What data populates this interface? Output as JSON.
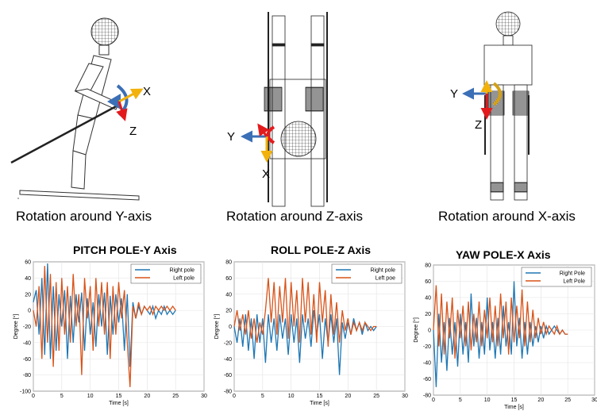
{
  "figures": [
    {
      "caption": "Rotation around Y-axis",
      "axes": [
        "X",
        "Z"
      ]
    },
    {
      "caption": "Rotation around Z-axis",
      "axes": [
        "Y",
        "X"
      ]
    },
    {
      "caption": "Rotation around X-axis",
      "axes": [
        "Y",
        "Z"
      ]
    }
  ],
  "colors": {
    "right_pole": "#1f77b4",
    "left_pole": "#d95319",
    "axis_x": "#f2b20b",
    "axis_y": "#3b6fb6",
    "axis_z": "#e31a1c"
  },
  "chart_data": [
    {
      "type": "line",
      "title": "PITCH POLE-Y Axis",
      "xlabel": "Time [s]",
      "ylabel": "Degree [°]",
      "xlim": [
        0,
        30
      ],
      "ylim": [
        -100,
        60
      ],
      "xticks": [
        0,
        5,
        10,
        15,
        20,
        25,
        30
      ],
      "yticks": [
        -100,
        -80,
        -60,
        -40,
        -20,
        0,
        20,
        40,
        60
      ],
      "grid": true,
      "legend": "top-right",
      "series": [
        {
          "name": "Right pole",
          "color": "#1f77b4",
          "x": [
            0,
            0.5,
            1,
            1.5,
            2,
            2.5,
            3,
            3.5,
            4,
            4.5,
            5,
            5.5,
            6,
            6.5,
            7,
            7.5,
            8,
            8.5,
            9,
            9.5,
            10,
            10.5,
            11,
            11.5,
            12,
            12.5,
            13,
            13.5,
            14,
            14.5,
            15,
            15.5,
            16,
            16.5,
            17,
            17.5,
            18,
            18.5,
            19,
            19.5,
            20,
            20.5,
            21,
            21.5,
            22,
            22.5,
            23,
            23.5,
            24,
            24.5,
            25
          ],
          "y": [
            10,
            25,
            -30,
            40,
            -55,
            58,
            -60,
            30,
            -50,
            20,
            -20,
            25,
            -60,
            18,
            -40,
            20,
            -15,
            22,
            -50,
            15,
            -30,
            10,
            -45,
            20,
            -20,
            22,
            -55,
            18,
            -30,
            20,
            -15,
            15,
            -50,
            20,
            -70,
            10,
            -10,
            5,
            -5,
            5,
            0,
            -5,
            5,
            -10,
            0,
            -5,
            5,
            -5,
            0,
            -5,
            0
          ]
        },
        {
          "name": "Left pole",
          "color": "#d95319",
          "x": [
            0,
            0.5,
            1,
            1.5,
            2,
            2.5,
            3,
            3.5,
            4,
            4.5,
            5,
            5.5,
            6,
            6.5,
            7,
            7.5,
            8,
            8.5,
            9,
            9.5,
            10,
            10.5,
            11,
            11.5,
            12,
            12.5,
            13,
            13.5,
            14,
            14.5,
            15,
            15.5,
            16,
            16.5,
            17,
            17.5,
            18,
            18.5,
            19,
            19.5,
            20,
            20.5,
            21,
            21.5,
            22,
            22.5,
            23,
            23.5,
            24,
            24.5,
            25
          ],
          "y": [
            0,
            -20,
            30,
            -60,
            55,
            -40,
            45,
            -70,
            35,
            -50,
            40,
            -30,
            30,
            -40,
            45,
            -20,
            20,
            -80,
            40,
            -10,
            30,
            -50,
            40,
            -20,
            35,
            -30,
            35,
            -60,
            30,
            -30,
            35,
            -10,
            25,
            -40,
            -95,
            5,
            -10,
            10,
            -5,
            5,
            0,
            5,
            -5,
            5,
            0,
            5,
            0,
            5,
            0,
            5,
            0
          ]
        }
      ]
    },
    {
      "type": "line",
      "title": "ROLL POLE-Z Axis",
      "xlabel": "Time [s]",
      "ylabel": "Degree [°]",
      "xlim": [
        0,
        30
      ],
      "ylim": [
        -80,
        80
      ],
      "xticks": [
        0,
        5,
        10,
        15,
        20,
        25,
        30
      ],
      "yticks": [
        -80,
        -60,
        -40,
        -20,
        0,
        20,
        40,
        60,
        80
      ],
      "grid": true,
      "legend": "top-right",
      "series": [
        {
          "name": "Right pole",
          "color": "#1f77b4",
          "x": [
            0,
            0.5,
            1,
            1.5,
            2,
            2.5,
            3,
            3.5,
            4,
            4.5,
            5,
            5.5,
            6,
            6.5,
            7,
            7.5,
            8,
            8.5,
            9,
            9.5,
            10,
            10.5,
            11,
            11.5,
            12,
            12.5,
            13,
            13.5,
            14,
            14.5,
            15,
            15.5,
            16,
            16.5,
            17,
            17.5,
            18,
            18.5,
            19,
            19.5,
            20,
            20.5,
            21,
            21.5,
            22,
            22.5,
            23,
            23.5,
            24,
            24.5,
            25
          ],
          "y": [
            0,
            -20,
            10,
            -25,
            15,
            -30,
            10,
            -40,
            15,
            -20,
            10,
            -45,
            15,
            -20,
            10,
            -30,
            15,
            -15,
            10,
            -35,
            15,
            -20,
            10,
            -45,
            15,
            -15,
            10,
            -25,
            20,
            -10,
            15,
            -40,
            10,
            -20,
            15,
            -20,
            10,
            -60,
            5,
            -15,
            5,
            -10,
            10,
            -5,
            5,
            -10,
            5,
            -5,
            0,
            -5,
            0
          ]
        },
        {
          "name": "Left poe",
          "color": "#d95319",
          "x": [
            0,
            0.5,
            1,
            1.5,
            2,
            2.5,
            3,
            3.5,
            4,
            4.5,
            5,
            5.5,
            6,
            6.5,
            7,
            7.5,
            8,
            8.5,
            9,
            9.5,
            10,
            10.5,
            11,
            11.5,
            12,
            12.5,
            13,
            13.5,
            14,
            14.5,
            15,
            15.5,
            16,
            16.5,
            17,
            17.5,
            18,
            18.5,
            19,
            19.5,
            20,
            20.5,
            21,
            21.5,
            22,
            22.5,
            23,
            23.5,
            24,
            24.5,
            25
          ],
          "y": [
            0,
            20,
            -5,
            15,
            -10,
            20,
            -15,
            10,
            -20,
            5,
            -10,
            20,
            60,
            5,
            55,
            -10,
            50,
            5,
            60,
            -15,
            55,
            0,
            45,
            -20,
            60,
            5,
            55,
            -10,
            40,
            -20,
            55,
            5,
            45,
            -25,
            40,
            -10,
            30,
            -20,
            20,
            -5,
            10,
            -10,
            5,
            -5,
            5,
            -5,
            5,
            0,
            -5,
            0,
            0
          ]
        }
      ]
    },
    {
      "type": "line",
      "title": "YAW POLE-X Axis",
      "xlabel": "Time [s]",
      "ylabel": "Degree [°]",
      "xlim": [
        0,
        30
      ],
      "ylim": [
        -80,
        80
      ],
      "xticks": [
        0,
        5,
        10,
        15,
        20,
        25,
        30
      ],
      "yticks": [
        -80,
        -60,
        -40,
        -20,
        0,
        20,
        40,
        60,
        80
      ],
      "grid": true,
      "legend": "top-right",
      "series": [
        {
          "name": "Right Pole",
          "color": "#1f77b4",
          "x": [
            0,
            0.5,
            1,
            1.5,
            2,
            2.5,
            3,
            3.5,
            4,
            4.5,
            5,
            5.5,
            6,
            6.5,
            7,
            7.5,
            8,
            8.5,
            9,
            9.5,
            10,
            10.5,
            11,
            11.5,
            12,
            12.5,
            13,
            13.5,
            14,
            14.5,
            15,
            15.5,
            16,
            16.5,
            17,
            17.5,
            18,
            18.5,
            19,
            19.5,
            20,
            20.5,
            21,
            21.5,
            22,
            22.5,
            23,
            23.5,
            24,
            24.5,
            25
          ],
          "y": [
            0,
            -70,
            20,
            -40,
            10,
            -50,
            15,
            -30,
            10,
            -45,
            20,
            -30,
            10,
            -40,
            45,
            -20,
            15,
            -35,
            10,
            -30,
            40,
            -25,
            10,
            -35,
            15,
            -30,
            30,
            -20,
            10,
            -30,
            60,
            -20,
            15,
            -35,
            10,
            -30,
            10,
            -20,
            5,
            -15,
            5,
            -10,
            5,
            -5,
            0,
            5,
            0,
            -5,
            0,
            -5,
            -5
          ]
        },
        {
          "name": "Left Pole",
          "color": "#d95319",
          "x": [
            0,
            0.5,
            1,
            1.5,
            2,
            2.5,
            3,
            3.5,
            4,
            4.5,
            5,
            5.5,
            6,
            6.5,
            7,
            7.5,
            8,
            8.5,
            9,
            9.5,
            10,
            10.5,
            11,
            11.5,
            12,
            12.5,
            13,
            13.5,
            14,
            14.5,
            15,
            15.5,
            16,
            16.5,
            17,
            17.5,
            18,
            18.5,
            19,
            19.5,
            20,
            20.5,
            21,
            21.5,
            22,
            22.5,
            23,
            23.5,
            24,
            24.5,
            25
          ],
          "y": [
            0,
            55,
            -20,
            45,
            -30,
            35,
            -10,
            40,
            -35,
            25,
            -10,
            30,
            -20,
            35,
            -25,
            20,
            -15,
            35,
            -20,
            25,
            -10,
            40,
            -15,
            30,
            -20,
            45,
            -10,
            35,
            -30,
            40,
            -15,
            30,
            -10,
            50,
            -20,
            35,
            -15,
            25,
            -10,
            15,
            -5,
            10,
            -5,
            5,
            0,
            -5,
            5,
            -5,
            0,
            -5,
            -5
          ]
        }
      ]
    }
  ]
}
